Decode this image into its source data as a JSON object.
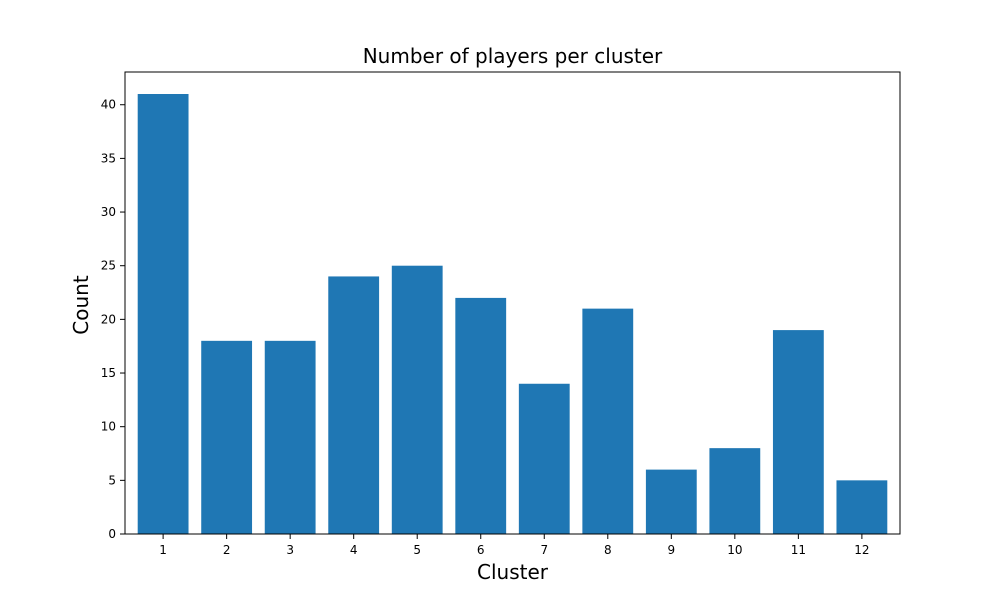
{
  "chart_data": {
    "type": "bar",
    "title": "Number of players per cluster",
    "xlabel": "Cluster",
    "ylabel": "Count",
    "categories": [
      "1",
      "2",
      "3",
      "4",
      "5",
      "6",
      "7",
      "8",
      "9",
      "10",
      "11",
      "12"
    ],
    "values": [
      41,
      18,
      18,
      24,
      25,
      22,
      14,
      21,
      6,
      8,
      19,
      5
    ],
    "ylim": [
      0,
      43.05
    ],
    "yticks": [
      0,
      5,
      10,
      15,
      20,
      25,
      30,
      35,
      40
    ],
    "grid": false,
    "bar_color": "#1f77b4"
  }
}
